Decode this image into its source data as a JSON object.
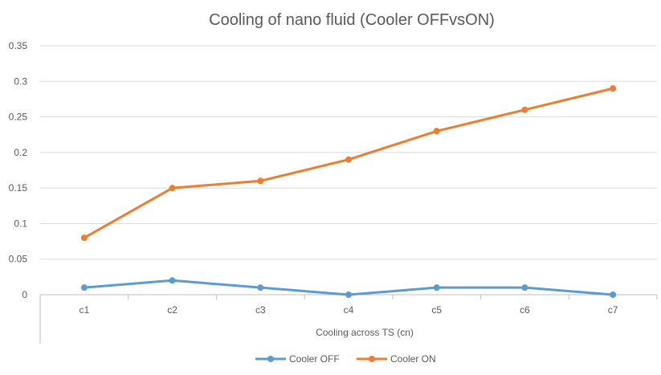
{
  "chart_data": {
    "type": "line",
    "title": "Cooling of nano fluid (Cooler OFFvsON)",
    "xlabel": "Cooling across TS (cn)",
    "ylabel": "",
    "categories": [
      "c1",
      "c2",
      "c3",
      "c4",
      "c5",
      "c6",
      "c7"
    ],
    "ylim": [
      0,
      0.35
    ],
    "yticks": [
      0,
      0.05,
      0.1,
      0.15,
      0.2,
      0.25,
      0.3,
      0.35
    ],
    "ytick_labels": [
      "0",
      "0.05",
      "0.1",
      "0.15",
      "0.2",
      "0.25",
      "0.3",
      "0.35"
    ],
    "grid": true,
    "legend_position": "bottom",
    "series": [
      {
        "name": "Cooler OFF",
        "color": "#5B9BD5",
        "values": [
          0.01,
          0.02,
          0.01,
          0.0,
          0.01,
          0.01,
          0.0
        ]
      },
      {
        "name": "Cooler ON",
        "color": "#ED7D31",
        "values": [
          0.08,
          0.15,
          0.16,
          0.19,
          0.23,
          0.26,
          0.29
        ]
      }
    ]
  }
}
